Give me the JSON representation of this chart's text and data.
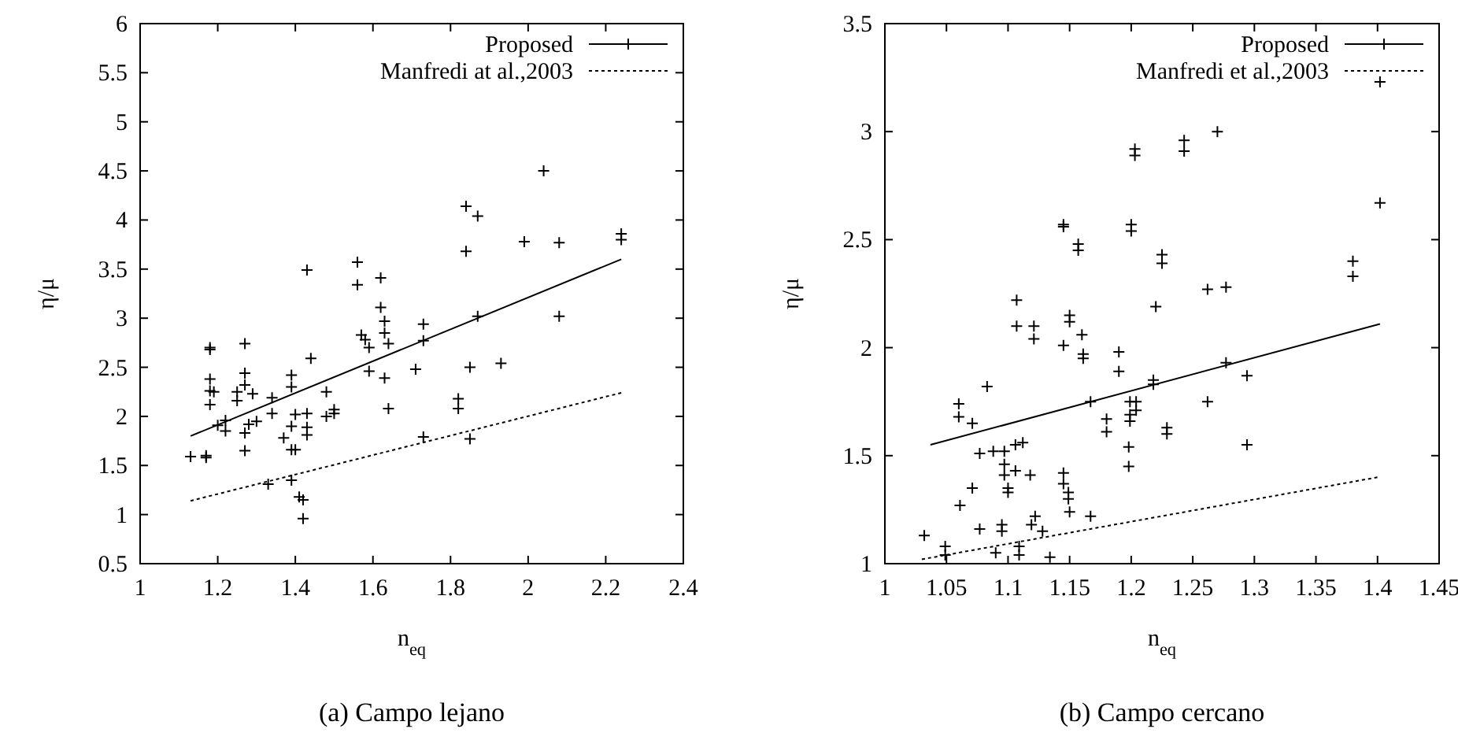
{
  "chart_data": [
    {
      "type": "scatter",
      "title": "(a) Campo lejano",
      "xlabel": "n$_{eq}$",
      "ylabel": "η/μ",
      "legend": "top right",
      "grid": false,
      "xlim": [
        1,
        2.4
      ],
      "xticks": [
        1,
        1.2,
        1.4,
        1.6,
        1.8,
        2,
        2.2,
        2.4
      ],
      "ylim": [
        0.5,
        6
      ],
      "yticks": [
        0.5,
        1,
        1.5,
        2,
        2.5,
        3,
        3.5,
        4,
        4.5,
        5,
        5.5,
        6
      ],
      "series": [
        {
          "type": "line",
          "name": "Proposed",
          "color": "#000000",
          "line_style": "solid",
          "marker": "none",
          "x": [
            1.13,
            2.24
          ],
          "values": [
            1.8,
            3.6
          ]
        },
        {
          "type": "line",
          "name": "Manfredi at al.,2003",
          "color": "#000000",
          "line_style": "dotted",
          "marker": "none",
          "x": [
            1.13,
            2.24
          ],
          "values": [
            1.14,
            2.24
          ]
        },
        {
          "marker": "cross",
          "color": "#000000",
          "x": [
            1.13,
            1.17,
            1.17,
            1.18,
            1.18,
            1.18,
            1.18,
            1.19,
            1.18,
            1.2,
            1.22,
            1.22,
            1.25,
            1.25,
            1.27,
            1.27,
            1.27,
            1.27,
            1.27,
            1.28,
            1.29,
            1.3,
            1.34,
            1.34,
            1.37,
            1.39,
            1.39,
            1.39,
            1.39,
            1.39,
            1.33,
            1.4,
            1.4,
            1.41,
            1.42,
            1.42,
            1.43,
            1.43,
            1.43,
            1.43,
            1.44,
            1.48,
            1.48,
            1.5,
            1.5,
            1.56,
            1.56,
            1.57,
            1.58,
            1.59,
            1.59,
            1.62,
            1.62,
            1.63,
            1.63,
            1.63,
            1.64,
            1.64,
            1.71,
            1.73,
            1.73,
            1.73,
            1.82,
            1.82,
            1.84,
            1.84,
            1.85,
            1.85,
            1.87,
            1.87,
            1.93,
            1.99,
            2.04,
            2.08,
            2.08,
            2.24,
            2.24
          ],
          "values": [
            1.59,
            1.58,
            1.6,
            2.68,
            2.7,
            2.38,
            2.26,
            2.25,
            2.12,
            1.91,
            1.96,
            1.85,
            2.25,
            2.16,
            2.74,
            2.44,
            2.32,
            1.83,
            1.65,
            1.92,
            2.23,
            1.95,
            2.19,
            2.03,
            1.78,
            1.9,
            1.66,
            2.42,
            2.3,
            1.35,
            1.31,
            1.66,
            2.02,
            1.18,
            1.15,
            0.96,
            1.89,
            1.81,
            2.03,
            3.49,
            2.59,
            2.25,
            2,
            2.07,
            2.03,
            3.57,
            3.34,
            2.83,
            2.78,
            2.7,
            2.46,
            3.41,
            3.11,
            2.97,
            2.85,
            2.39,
            2.74,
            2.08,
            2.48,
            2.94,
            2.77,
            1.79,
            2.18,
            2.08,
            4.14,
            3.68,
            2.5,
            1.77,
            4.04,
            3.02,
            2.54,
            3.78,
            4.5,
            3.77,
            3.02,
            3.86,
            3.8
          ]
        }
      ]
    },
    {
      "type": "scatter",
      "title": "(b) Campo cercano",
      "xlabel": "n$_{eq}$",
      "ylabel": "η/μ",
      "legend": "top right",
      "grid": false,
      "xlim": [
        1,
        1.45
      ],
      "xticks": [
        1,
        1.05,
        1.1,
        1.15,
        1.2,
        1.25,
        1.3,
        1.35,
        1.4,
        1.45
      ],
      "ylim": [
        1,
        3.5
      ],
      "yticks": [
        1,
        1.5,
        2,
        2.5,
        3,
        3.5
      ],
      "series": [
        {
          "type": "line",
          "name": "Proposed",
          "color": "#000000",
          "line_style": "solid",
          "marker": "none",
          "x": [
            1.037,
            1.402
          ],
          "values": [
            1.55,
            2.11
          ]
        },
        {
          "type": "line",
          "name": "Manfredi et al.,2003",
          "color": "#000000",
          "line_style": "dotted",
          "marker": "none",
          "x": [
            1.03,
            1.4
          ],
          "values": [
            1.02,
            1.4
          ]
        },
        {
          "marker": "cross",
          "color": "#000000",
          "x": [
            1.402,
            1.402,
            1.38,
            1.38,
            1.27,
            1.243,
            1.243,
            1.203,
            1.203,
            1.2,
            1.2,
            1.225,
            1.225,
            1.22,
            1.262,
            1.277,
            1.145,
            1.145,
            1.157,
            1.157,
            1.107,
            1.107,
            1.121,
            1.121,
            1.15,
            1.15,
            1.145,
            1.16,
            1.161,
            1.161,
            1.19,
            1.19,
            1.167,
            1.18,
            1.18,
            1.199,
            1.199,
            1.199,
            1.204,
            1.204,
            1.218,
            1.218,
            1.277,
            1.294,
            1.262,
            1.229,
            1.229,
            1.198,
            1.198,
            1.294,
            1.06,
            1.06,
            1.071,
            1.083,
            1.077,
            1.088,
            1.097,
            1.097,
            1.097,
            1.1,
            1.1,
            1.106,
            1.106,
            1.112,
            1.118,
            1.145,
            1.145,
            1.149,
            1.149,
            1.15,
            1.167,
            1.122,
            1.071,
            1.061,
            1.032,
            1.049,
            1.049,
            1.077,
            1.095,
            1.095,
            1.109,
            1.109,
            1.119,
            1.128,
            1.134,
            1.09
          ],
          "values": [
            3.23,
            2.67,
            2.4,
            2.33,
            3,
            2.96,
            2.91,
            2.92,
            2.89,
            2.57,
            2.54,
            2.43,
            2.39,
            2.19,
            2.27,
            2.28,
            2.57,
            2.56,
            2.48,
            2.45,
            2.22,
            2.1,
            2.1,
            2.04,
            2.15,
            2.12,
            2.01,
            2.06,
            1.97,
            1.95,
            1.98,
            1.89,
            1.75,
            1.67,
            1.61,
            1.75,
            1.69,
            1.66,
            1.75,
            1.71,
            1.85,
            1.83,
            1.93,
            1.87,
            1.75,
            1.63,
            1.6,
            1.54,
            1.45,
            1.55,
            1.74,
            1.68,
            1.65,
            1.82,
            1.51,
            1.52,
            1.52,
            1.46,
            1.41,
            1.35,
            1.33,
            1.55,
            1.43,
            1.56,
            1.41,
            1.42,
            1.37,
            1.33,
            1.3,
            1.24,
            1.22,
            1.22,
            1.35,
            1.27,
            1.13,
            1.08,
            1.04,
            1.16,
            1.18,
            1.15,
            1.08,
            1.04,
            1.18,
            1.15,
            1.03,
            1.05
          ]
        }
      ]
    }
  ]
}
